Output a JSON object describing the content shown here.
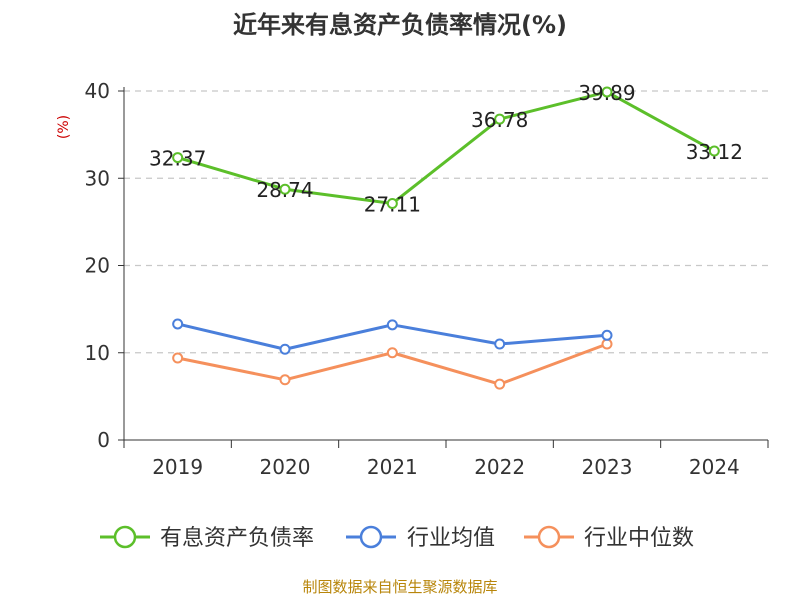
{
  "chart_data": {
    "type": "line",
    "title": "近年来有息资产负债率情况(%)",
    "unit_label": "(%)",
    "categories": [
      "2019",
      "2020",
      "2021",
      "2022",
      "2023",
      "2024"
    ],
    "ylim": [
      0,
      40
    ],
    "yticks": [
      "0",
      "10",
      "20",
      "30",
      "40"
    ],
    "grid": true,
    "legend_position": "bottom",
    "series": [
      {
        "name": "有息资产负债率",
        "color": "#5cbf2a",
        "values": [
          32.37,
          28.74,
          27.11,
          36.78,
          39.89,
          33.12
        ],
        "labels": [
          "32.37",
          "28.74",
          "27.11",
          "36.78",
          "39.89",
          "33.12"
        ]
      },
      {
        "name": "行业均值",
        "color": "#4a7fdb",
        "values": [
          13.3,
          10.4,
          13.2,
          11.0,
          12.0,
          null
        ]
      },
      {
        "name": "行业中位数",
        "color": "#f5905c",
        "values": [
          9.4,
          6.9,
          10.0,
          6.4,
          11.0,
          null
        ]
      }
    ],
    "source": "制图数据来自恒生聚源数据库"
  }
}
